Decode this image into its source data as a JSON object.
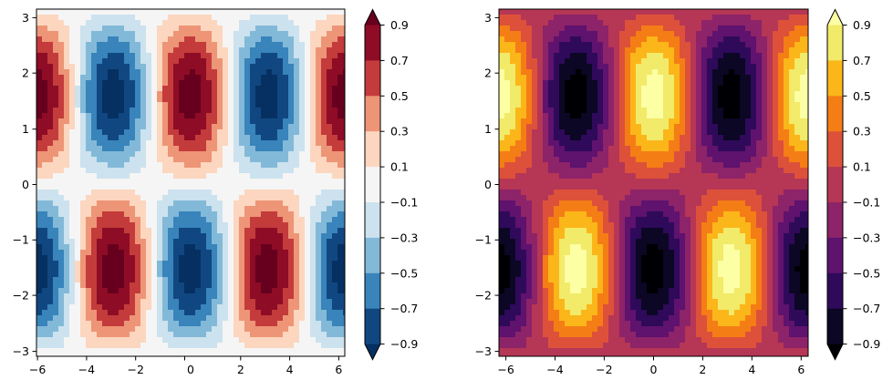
{
  "chart_data": [
    {
      "type": "heatmap",
      "subtype": "filled-contour",
      "title": "",
      "xlabel": "",
      "ylabel": "",
      "xlim": [
        -6.283,
        6.283
      ],
      "ylim": [
        -3.1416,
        3.1416
      ],
      "xticks": [
        "−6",
        "−4",
        "−2",
        "0",
        "2",
        "4",
        "6"
      ],
      "yticks": [
        "−3",
        "−2",
        "−1",
        "0",
        "1",
        "2",
        "3"
      ],
      "levels": [
        -0.9,
        -0.7,
        -0.5,
        -0.3,
        -0.1,
        0.1,
        0.3,
        0.5,
        0.7,
        0.9
      ],
      "extend": "both",
      "colormap": "RdBu_r",
      "colorbar_ticks": [
        "0.9",
        "0.7",
        "0.5",
        "0.3",
        "0.1",
        "−0.1",
        "−0.3",
        "−0.5",
        "−0.7",
        "−0.9"
      ],
      "colors": {
        "under": "#053061",
        "bands": [
          "#114781",
          "#3884bb",
          "#83b9d8",
          "#cce2ee",
          "#f5f5f5",
          "#fcd6bf",
          "#ed9576",
          "#c43b3c",
          "#8e0c25"
        ],
        "over": "#67001f"
      }
    },
    {
      "type": "heatmap",
      "subtype": "filled-contour",
      "title": "",
      "xlabel": "",
      "ylabel": "",
      "xlim": [
        -6.283,
        6.283
      ],
      "ylim": [
        -3.1416,
        3.1416
      ],
      "xticks": [
        "−6",
        "−4",
        "−2",
        "0",
        "2",
        "4",
        "6"
      ],
      "yticks": [
        "−3",
        "−2",
        "−1",
        "0",
        "1",
        "2",
        "3"
      ],
      "levels": [
        -0.9,
        -0.7,
        -0.5,
        -0.3,
        -0.1,
        0.1,
        0.3,
        0.5,
        0.7,
        0.9
      ],
      "extend": "both",
      "colormap": "inferno",
      "colorbar_ticks": [
        "0.9",
        "0.7",
        "0.5",
        "0.3",
        "0.1",
        "−0.1",
        "−0.3",
        "−0.5",
        "−0.7",
        "−0.9"
      ],
      "colors": {
        "under": "#000004",
        "bands": [
          "#0b0724",
          "#2f0a5b",
          "#5f126e",
          "#8d2369",
          "#b63655",
          "#dd513a",
          "#f57d15",
          "#fbb61a",
          "#f2ea69"
        ],
        "over": "#fcffa4"
      }
    }
  ]
}
